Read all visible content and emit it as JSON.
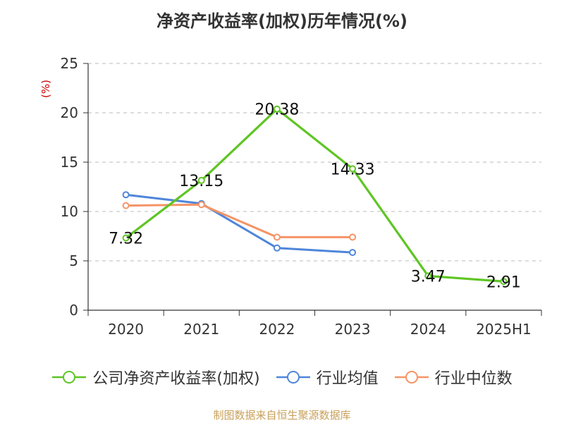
{
  "title": "净资产收益率(加权)历年情况(%)",
  "source": "制图数据来自恒生聚源数据库",
  "colors": {
    "company": "#5ec524",
    "industry_avg": "#4f86d9",
    "industry_median": "#f59467",
    "source_text": "#c8a05a",
    "unit_label": "#cc0000"
  },
  "legend": [
    "公司净资产收益率(加权)",
    "行业均值",
    "行业中位数"
  ],
  "chart_data": {
    "type": "line",
    "title": "净资产收益率(加权)历年情况(%)",
    "xlabel": "",
    "ylabel": "(%)",
    "categories": [
      "2020",
      "2021",
      "2022",
      "2023",
      "2024",
      "2025H1"
    ],
    "ylim": [
      0,
      25
    ],
    "yticks": [
      0,
      5,
      10,
      15,
      20,
      25
    ],
    "grid": true,
    "legend_position": "bottom",
    "series": [
      {
        "name": "公司净资产收益率(加权)",
        "values": [
          7.32,
          13.15,
          20.38,
          14.33,
          3.47,
          2.91
        ],
        "labels": [
          "7.32",
          "13.15",
          "20.38",
          "14.33",
          "3.47",
          "2.91"
        ]
      },
      {
        "name": "行业均值",
        "values": [
          11.7,
          10.8,
          6.3,
          5.85,
          null,
          null
        ]
      },
      {
        "name": "行业中位数",
        "values": [
          10.6,
          10.7,
          7.4,
          7.4,
          null,
          null
        ]
      }
    ]
  }
}
